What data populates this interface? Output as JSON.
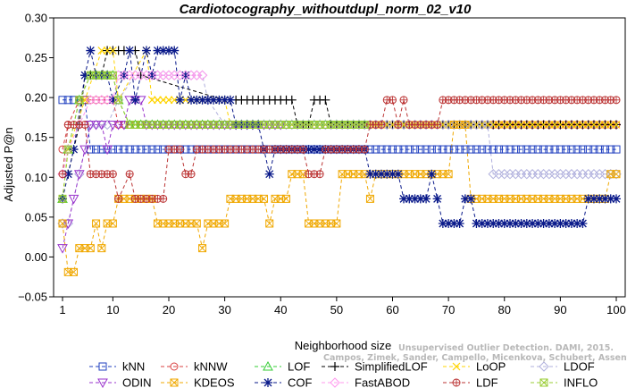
{
  "chart_data": {
    "type": "line",
    "title": "Cardiotocography_withoutdupl_norm_02_v10",
    "xlabel": "Neighborhood size",
    "ylabel": "Adjusted P@n",
    "xlim": [
      0,
      100
    ],
    "ylim": [
      -0.05,
      0.3
    ],
    "xticks": [
      "1",
      "10",
      "20",
      "30",
      "40",
      "50",
      "60",
      "70",
      "80",
      "90",
      "100"
    ],
    "yticks": [
      "−0.05",
      "0.00",
      "0.05",
      "0.10",
      "0.15",
      "0.20",
      "0.25",
      "0.30"
    ],
    "legend_position": "bottom",
    "watermark": [
      "Unsupervised Outlier Detection. DAMI, 2015.",
      "Campos, Zimek, Sander, Campello, Micenkova, Schubert, Assent, Houle"
    ],
    "series": [
      {
        "name": "kNN",
        "color": "#1f3fbf",
        "marker": "square",
        "segments": [
          [
            1,
            0.197
          ],
          [
            5,
            0.197
          ],
          [
            6,
            0.135
          ],
          [
            100,
            0.135
          ]
        ]
      },
      {
        "name": "kNNW",
        "color": "#d94040",
        "marker": "circle",
        "segments": [
          [
            1,
            0.135
          ],
          [
            2,
            0.166
          ],
          [
            4,
            0.197
          ],
          [
            10,
            0.197
          ],
          [
            11,
            0.166
          ],
          [
            100,
            0.166
          ]
        ]
      },
      {
        "name": "LOF",
        "color": "#33cc33",
        "marker": "triangle",
        "segments": [
          [
            1,
            0.073
          ],
          [
            2,
            0.135
          ],
          [
            4,
            0.197
          ],
          [
            6,
            0.228
          ],
          [
            10,
            0.228
          ],
          [
            11,
            0.197
          ],
          [
            13,
            0.166
          ],
          [
            55,
            0.166
          ]
        ]
      },
      {
        "name": "SimplifiedLOF",
        "color": "#000000",
        "marker": "plus",
        "segments": [
          [
            2,
            0.104
          ],
          [
            4,
            0.166
          ],
          [
            5,
            0.228
          ],
          [
            8,
            0.228
          ],
          [
            9,
            0.259
          ],
          [
            14,
            0.259
          ],
          [
            15,
            0.228
          ],
          [
            30,
            0.197
          ],
          [
            42,
            0.197
          ],
          [
            43,
            0.166
          ],
          [
            45,
            0.166
          ],
          [
            46,
            0.197
          ],
          [
            48,
            0.197
          ],
          [
            49,
            0.166
          ],
          [
            100,
            0.166
          ]
        ]
      },
      {
        "name": "LoOP",
        "color": "#ffd400",
        "marker": "x",
        "segments": [
          [
            1,
            0.073
          ],
          [
            2,
            0.135
          ],
          [
            5,
            0.197
          ],
          [
            8,
            0.259
          ],
          [
            10,
            0.259
          ],
          [
            11,
            0.197
          ],
          [
            16,
            0.259
          ],
          [
            17,
            0.197
          ],
          [
            30,
            0.197
          ],
          [
            31,
            0.166
          ],
          [
            100,
            0.166
          ]
        ]
      },
      {
        "name": "LDOF",
        "color": "#b0b0dd",
        "marker": "diamond",
        "segments": [
          [
            1,
            0.042
          ],
          [
            2,
            0.042
          ],
          [
            4,
            0.104
          ],
          [
            6,
            0.166
          ],
          [
            9,
            0.166
          ],
          [
            11,
            0.197
          ],
          [
            14,
            0.228
          ],
          [
            26,
            0.228
          ],
          [
            27,
            0.197
          ],
          [
            30,
            0.166
          ],
          [
            77,
            0.166
          ],
          [
            78,
            0.104
          ],
          [
            100,
            0.104
          ]
        ]
      },
      {
        "name": "ODIN",
        "color": "#9933cc",
        "marker": "triangle-down",
        "segments": [
          [
            1,
            0.011
          ],
          [
            2,
            0.042
          ],
          [
            3,
            0.073
          ],
          [
            4,
            0.104
          ],
          [
            5,
            0.135
          ],
          [
            6,
            0.166
          ],
          [
            8,
            0.166
          ],
          [
            9,
            0.135
          ],
          [
            10,
            0.166
          ],
          [
            12,
            0.166
          ],
          [
            13,
            0.197
          ],
          [
            15,
            0.197
          ],
          [
            16,
            0.166
          ],
          [
            40,
            0.166
          ]
        ]
      },
      {
        "name": "KDEOS",
        "color": "#f0a800",
        "marker": "square-x",
        "segments": [
          [
            1,
            0.042
          ],
          [
            2,
            -0.019
          ],
          [
            3,
            -0.019
          ],
          [
            4,
            0.011
          ],
          [
            6,
            0.011
          ],
          [
            7,
            0.042
          ],
          [
            8,
            0.011
          ],
          [
            9,
            0.042
          ],
          [
            10,
            0.042
          ],
          [
            11,
            0.073
          ],
          [
            17,
            0.073
          ],
          [
            18,
            0.042
          ],
          [
            25,
            0.042
          ],
          [
            26,
            0.011
          ],
          [
            27,
            0.042
          ],
          [
            30,
            0.042
          ],
          [
            31,
            0.073
          ],
          [
            37,
            0.073
          ],
          [
            38,
            0.042
          ],
          [
            39,
            0.073
          ],
          [
            41,
            0.073
          ],
          [
            42,
            0.104
          ],
          [
            44,
            0.104
          ],
          [
            45,
            0.042
          ],
          [
            50,
            0.042
          ],
          [
            51,
            0.104
          ],
          [
            55,
            0.104
          ],
          [
            56,
            0.073
          ],
          [
            57,
            0.104
          ],
          [
            70,
            0.104
          ],
          [
            71,
            0.166
          ],
          [
            73,
            0.166
          ],
          [
            74,
            0.073
          ],
          [
            98,
            0.073
          ],
          [
            99,
            0.104
          ],
          [
            100,
            0.104
          ]
        ]
      },
      {
        "name": "COF",
        "color": "#0a1a8a",
        "marker": "star",
        "segments": [
          [
            1,
            0.073
          ],
          [
            2,
            0.104
          ],
          [
            3,
            0.135
          ],
          [
            5,
            0.228
          ],
          [
            6,
            0.259
          ],
          [
            7,
            0.228
          ],
          [
            9,
            0.228
          ],
          [
            10,
            0.197
          ],
          [
            12,
            0.228
          ],
          [
            13,
            0.259
          ],
          [
            14,
            0.197
          ],
          [
            16,
            0.259
          ],
          [
            17,
            0.228
          ],
          [
            18,
            0.259
          ],
          [
            21,
            0.259
          ],
          [
            22,
            0.197
          ],
          [
            23,
            0.228
          ],
          [
            24,
            0.197
          ],
          [
            31,
            0.197
          ],
          [
            32,
            0.166
          ],
          [
            36,
            0.166
          ],
          [
            37,
            0.135
          ],
          [
            38,
            0.104
          ],
          [
            39,
            0.135
          ],
          [
            55,
            0.135
          ],
          [
            56,
            0.104
          ],
          [
            61,
            0.104
          ],
          [
            62,
            0.073
          ],
          [
            66,
            0.073
          ],
          [
            67,
            0.104
          ],
          [
            68,
            0.073
          ],
          [
            69,
            0.042
          ],
          [
            72,
            0.042
          ],
          [
            73,
            0.073
          ],
          [
            74,
            0.073
          ],
          [
            75,
            0.042
          ],
          [
            94,
            0.042
          ],
          [
            95,
            0.073
          ],
          [
            100,
            0.073
          ]
        ]
      },
      {
        "name": "FastABOD",
        "color": "#ff99ee",
        "marker": "diamond",
        "segments": [
          [
            1,
            0.104
          ],
          [
            2,
            0.135
          ],
          [
            4,
            0.166
          ],
          [
            6,
            0.197
          ],
          [
            10,
            0.197
          ],
          [
            11,
            0.228
          ],
          [
            26,
            0.228
          ]
        ]
      },
      {
        "name": "LDF",
        "color": "#bb3333",
        "marker": "circle-plus",
        "segments": [
          [
            1,
            0.104
          ],
          [
            2,
            0.166
          ],
          [
            5,
            0.166
          ],
          [
            6,
            0.104
          ],
          [
            10,
            0.104
          ],
          [
            11,
            0.073
          ],
          [
            13,
            0.104
          ],
          [
            14,
            0.073
          ],
          [
            19,
            0.073
          ],
          [
            20,
            0.135
          ],
          [
            22,
            0.135
          ],
          [
            23,
            0.104
          ],
          [
            24,
            0.104
          ],
          [
            25,
            0.135
          ],
          [
            44,
            0.135
          ],
          [
            45,
            0.104
          ],
          [
            47,
            0.104
          ],
          [
            48,
            0.135
          ],
          [
            55,
            0.135
          ],
          [
            56,
            0.166
          ],
          [
            58,
            0.166
          ],
          [
            59,
            0.197
          ],
          [
            60,
            0.197
          ],
          [
            61,
            0.166
          ],
          [
            62,
            0.197
          ],
          [
            63,
            0.166
          ],
          [
            68,
            0.166
          ],
          [
            69,
            0.197
          ],
          [
            100,
            0.197
          ]
        ]
      },
      {
        "name": "INFLO",
        "color": "#99cc33",
        "marker": "square-x",
        "segments": [
          [
            1,
            0.073
          ],
          [
            2,
            0.135
          ],
          [
            4,
            0.197
          ],
          [
            6,
            0.228
          ],
          [
            10,
            0.228
          ],
          [
            11,
            0.197
          ],
          [
            13,
            0.166
          ],
          [
            55,
            0.166
          ]
        ]
      }
    ]
  }
}
